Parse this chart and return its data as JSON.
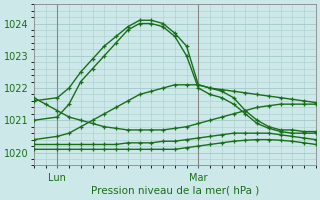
{
  "bg_color": "#cce8e8",
  "grid_color": "#aacccc",
  "line_color": "#1a6e1a",
  "title": "Pression niveau de la mer( hPa )",
  "ylim": [
    1019.6,
    1024.6
  ],
  "xlim": [
    0,
    48
  ],
  "yticks": [
    1020,
    1021,
    1022,
    1023,
    1024
  ],
  "lun_x": 4,
  "mar_x": 28,
  "series": [
    {
      "x": [
        0,
        4,
        6,
        8,
        10,
        12,
        14,
        16,
        18,
        20,
        22,
        24,
        26,
        28,
        30,
        32,
        34,
        36,
        38,
        40,
        42,
        44,
        46,
        48
      ],
      "y": [
        1021.6,
        1021.7,
        1022.0,
        1022.5,
        1022.9,
        1023.3,
        1023.6,
        1023.9,
        1024.1,
        1024.1,
        1024.0,
        1023.7,
        1023.3,
        1022.1,
        1022.0,
        1021.9,
        1021.7,
        1021.3,
        1021.0,
        1020.8,
        1020.7,
        1020.7,
        1020.65,
        1020.65
      ]
    },
    {
      "x": [
        0,
        4,
        6,
        8,
        10,
        12,
        14,
        16,
        18,
        20,
        22,
        24,
        26,
        28,
        30,
        32,
        34,
        36,
        38,
        40,
        42,
        44,
        46,
        48
      ],
      "y": [
        1021.0,
        1021.1,
        1021.5,
        1022.2,
        1022.6,
        1023.0,
        1023.4,
        1023.8,
        1024.0,
        1024.0,
        1023.9,
        1023.6,
        1023.0,
        1022.0,
        1021.8,
        1021.7,
        1021.5,
        1021.2,
        1020.9,
        1020.75,
        1020.65,
        1020.6,
        1020.6,
        1020.6
      ]
    },
    {
      "x": [
        0,
        4,
        6,
        8,
        10,
        12,
        14,
        16,
        18,
        20,
        22,
        24,
        26,
        28,
        30,
        32,
        34,
        36,
        38,
        40,
        42,
        44,
        46,
        48
      ],
      "y": [
        1020.4,
        1020.5,
        1020.6,
        1020.8,
        1021.0,
        1021.2,
        1021.4,
        1021.6,
        1021.8,
        1021.9,
        1022.0,
        1022.1,
        1022.1,
        1022.1,
        1022.0,
        1021.95,
        1021.9,
        1021.85,
        1021.8,
        1021.75,
        1021.7,
        1021.65,
        1021.6,
        1021.55
      ]
    },
    {
      "x": [
        0,
        4,
        6,
        8,
        10,
        12,
        14,
        16,
        18,
        20,
        22,
        24,
        26,
        28,
        30,
        32,
        34,
        36,
        38,
        40,
        42,
        44,
        46,
        48
      ],
      "y": [
        1020.25,
        1020.25,
        1020.25,
        1020.25,
        1020.25,
        1020.25,
        1020.25,
        1020.3,
        1020.3,
        1020.3,
        1020.35,
        1020.35,
        1020.4,
        1020.45,
        1020.5,
        1020.55,
        1020.6,
        1020.6,
        1020.6,
        1020.6,
        1020.55,
        1020.5,
        1020.45,
        1020.4
      ]
    },
    {
      "x": [
        0,
        4,
        6,
        8,
        10,
        12,
        14,
        16,
        18,
        20,
        22,
        24,
        26,
        28,
        30,
        32,
        34,
        36,
        38,
        40,
        42,
        44,
        46,
        48
      ],
      "y": [
        1020.1,
        1020.1,
        1020.1,
        1020.1,
        1020.1,
        1020.1,
        1020.1,
        1020.1,
        1020.1,
        1020.1,
        1020.1,
        1020.1,
        1020.15,
        1020.2,
        1020.25,
        1020.3,
        1020.35,
        1020.38,
        1020.4,
        1020.4,
        1020.38,
        1020.35,
        1020.3,
        1020.25
      ]
    },
    {
      "x": [
        0,
        2,
        4,
        6,
        8,
        10,
        12,
        14,
        16,
        18,
        20,
        22,
        24,
        26,
        28,
        30,
        32,
        34,
        36,
        38,
        40,
        42,
        44,
        46,
        48
      ],
      "y": [
        1021.7,
        1021.5,
        1021.3,
        1021.1,
        1021.0,
        1020.9,
        1020.8,
        1020.75,
        1020.7,
        1020.7,
        1020.7,
        1020.7,
        1020.75,
        1020.8,
        1020.9,
        1021.0,
        1021.1,
        1021.2,
        1021.3,
        1021.4,
        1021.45,
        1021.5,
        1021.5,
        1021.5,
        1021.5
      ]
    }
  ]
}
